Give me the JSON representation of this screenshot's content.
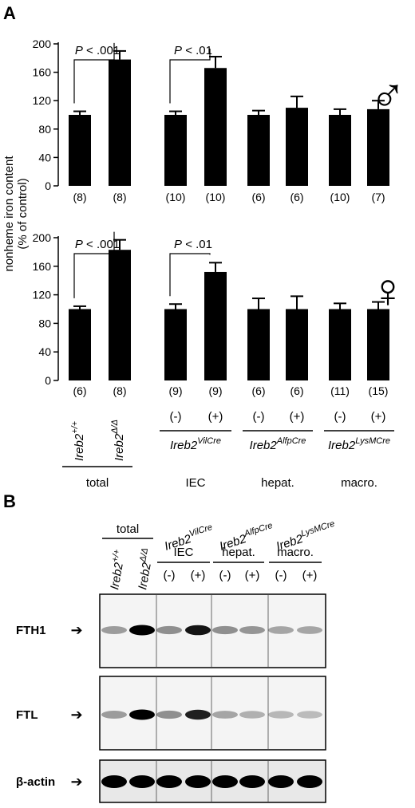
{
  "panel_a_letter": "A",
  "panel_b_letter": "B",
  "chart_data": [
    {
      "type": "bar",
      "sex_symbol": "♂",
      "ylabel": "nonheme iron content (% of control)",
      "ylim": [
        0,
        200
      ],
      "yticks": [
        "0",
        "40",
        "80",
        "120",
        "160",
        "200"
      ],
      "groups": [
        "total",
        "IEC",
        "hepat.",
        "macro."
      ],
      "values": [
        100,
        178,
        100,
        166,
        100,
        110,
        100,
        108
      ],
      "errors": [
        5,
        12,
        5,
        16,
        6,
        16,
        8,
        12
      ],
      "n_labels": [
        "(8)",
        "(8)",
        "(10)",
        "(10)",
        "(6)",
        "(6)",
        "(10)",
        "(7)"
      ],
      "annotations": [
        {
          "text": "P < .001",
          "between": [
            0,
            1
          ]
        },
        {
          "text": "P < .01",
          "between": [
            2,
            3
          ]
        }
      ]
    },
    {
      "type": "bar",
      "sex_symbol": "♀",
      "ylabel": "nonheme iron content (% of control)",
      "ylim": [
        0,
        200
      ],
      "yticks": [
        "0",
        "40",
        "80",
        "120",
        "160",
        "200"
      ],
      "groups": [
        "total",
        "IEC",
        "hepat.",
        "macro."
      ],
      "values": [
        100,
        183,
        100,
        152,
        100,
        100,
        100,
        100
      ],
      "errors": [
        4,
        14,
        7,
        13,
        15,
        18,
        8,
        10
      ],
      "n_labels": [
        "(6)",
        "(8)",
        "(9)",
        "(9)",
        "(6)",
        "(6)",
        "(11)",
        "(15)"
      ],
      "annotations": [
        {
          "text": "P < .001",
          "between": [
            0,
            1
          ]
        },
        {
          "text": "P < .01",
          "between": [
            2,
            3
          ]
        }
      ]
    }
  ],
  "bottom_labels": {
    "total_geno": [
      {
        "base": "Ireb2",
        "sup": "+/+"
      },
      {
        "base": "Ireb2",
        "sup": "Δ/Δ"
      }
    ],
    "minus": "(-)",
    "plus": "(+)",
    "cre_lines": [
      {
        "base": "Ireb2",
        "sup": "VilCre"
      },
      {
        "base": "Ireb2",
        "sup": "AlfpCre"
      },
      {
        "base": "Ireb2",
        "sup": "LysMCre"
      }
    ],
    "groups": [
      "total",
      "IEC",
      "hepat.",
      "macro."
    ]
  },
  "blot": {
    "blots": [
      "FTH1",
      "FTL",
      "β-actin"
    ],
    "arrow": "➔"
  }
}
